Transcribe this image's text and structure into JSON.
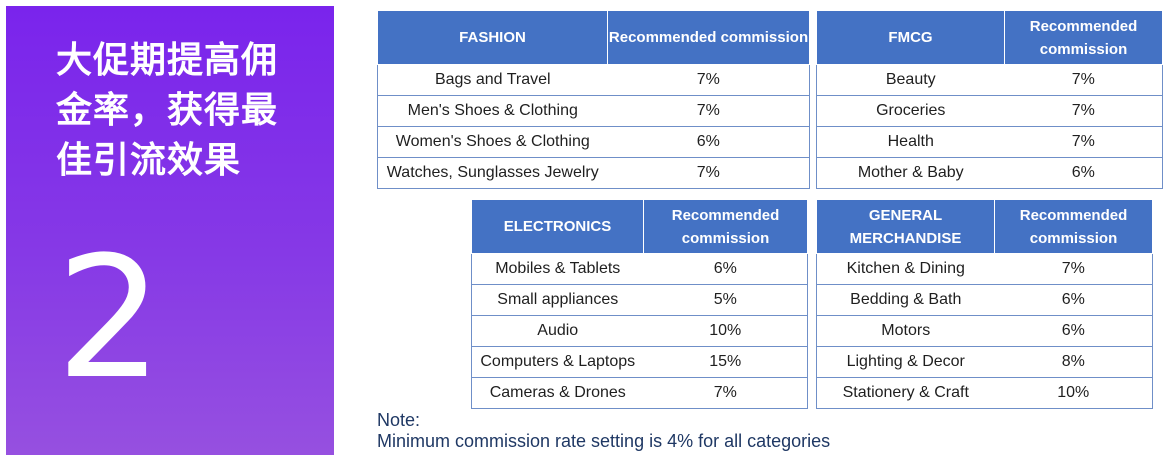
{
  "side": {
    "title": "大促期提高佣金率，获得最佳引流效果",
    "number": "2"
  },
  "tables": {
    "fashion": {
      "header": "FASHION",
      "commission_header": "Recommended commission",
      "rows": [
        {
          "category": "Bags and Travel",
          "rate": "7%"
        },
        {
          "category": "Men's Shoes & Clothing",
          "rate": "7%"
        },
        {
          "category": "Women's Shoes & Clothing",
          "rate": "6%"
        },
        {
          "category": "Watches, Sunglasses Jewelry",
          "rate": "7%"
        }
      ]
    },
    "fmcg": {
      "header": "FMCG",
      "commission_header": "Recommended commission",
      "rows": [
        {
          "category": "Beauty",
          "rate": "7%"
        },
        {
          "category": "Groceries",
          "rate": "7%"
        },
        {
          "category": "Health",
          "rate": "7%"
        },
        {
          "category": "Mother & Baby",
          "rate": "6%"
        }
      ]
    },
    "electronics": {
      "header": "ELECTRONICS",
      "commission_header": "Recommended commission",
      "rows": [
        {
          "category": "Mobiles & Tablets",
          "rate": "6%"
        },
        {
          "category": "Small appliances",
          "rate": "5%"
        },
        {
          "category": "Audio",
          "rate": "10%"
        },
        {
          "category": "Computers & Laptops",
          "rate": "15%"
        },
        {
          "category": "Cameras & Drones",
          "rate": "7%"
        }
      ]
    },
    "general": {
      "header": "GENERAL MERCHANDISE",
      "commission_header": "Recommended commission",
      "rows": [
        {
          "category": "Kitchen & Dining",
          "rate": "7%"
        },
        {
          "category": "Bedding & Bath",
          "rate": "6%"
        },
        {
          "category": "Motors",
          "rate": "6%"
        },
        {
          "category": "Lighting & Decor",
          "rate": "8%"
        },
        {
          "category": "Stationery & Craft",
          "rate": "10%"
        }
      ]
    }
  },
  "note": {
    "label": "Note:",
    "text": "Minimum commission rate setting is 4% for all categories"
  },
  "colors": {
    "panel": "#7a24ec",
    "table_header": "#4472c4",
    "note_text": "#1f3864"
  }
}
